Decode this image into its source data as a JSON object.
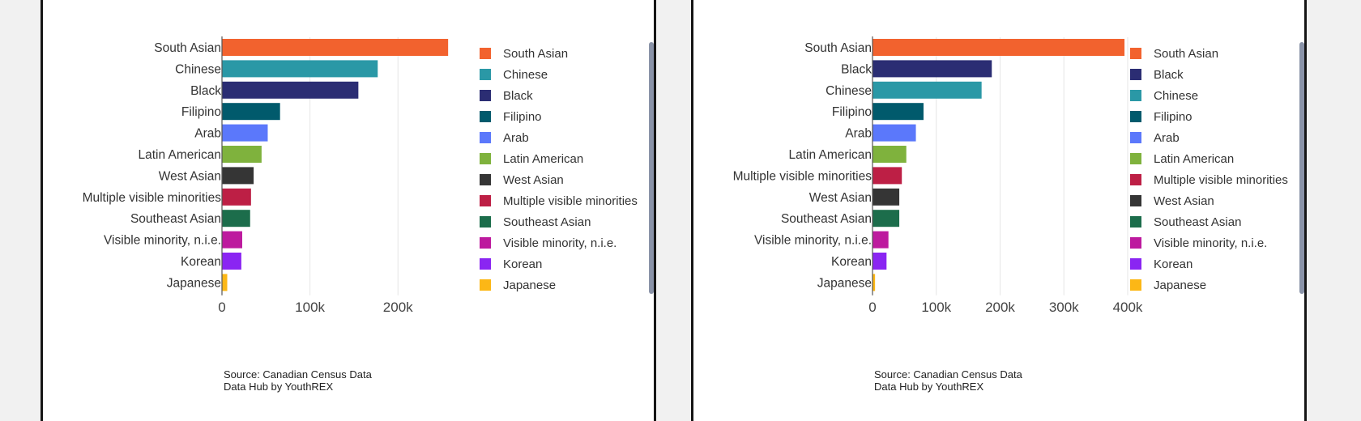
{
  "chart_data": [
    {
      "type": "bar",
      "orientation": "horizontal",
      "categories": [
        "South Asian",
        "Chinese",
        "Black",
        "Filipino",
        "Arab",
        "Latin American",
        "West Asian",
        "Multiple visible minorities",
        "Southeast Asian",
        "Visible minority, n.i.e.",
        "Korean",
        "Japanese"
      ],
      "values": [
        257000,
        177000,
        155000,
        66000,
        52000,
        45000,
        36000,
        33000,
        32000,
        23000,
        22000,
        6000
      ],
      "colors": [
        "#f2622e",
        "#2a98a6",
        "#2b2d73",
        "#015a6c",
        "#5b78fb",
        "#7fb23d",
        "#353535",
        "#bd1f45",
        "#1c6d4b",
        "#bd1a9e",
        "#8a25f2",
        "#fcb716"
      ],
      "xlim": [
        0,
        290000
      ],
      "xticks": [
        "0",
        "100k",
        "200k"
      ],
      "grid": true,
      "legend": "right",
      "source_lines": [
        "Source: Canadian Census Data",
        "Data Hub by YouthREX"
      ]
    },
    {
      "type": "bar",
      "orientation": "horizontal",
      "categories": [
        "South Asian",
        "Black",
        "Chinese",
        "Filipino",
        "Arab",
        "Latin American",
        "Multiple visible minorities",
        "West Asian",
        "Southeast Asian",
        "Visible minority, n.i.e.",
        "Korean",
        "Japanese"
      ],
      "values": [
        395000,
        187000,
        171000,
        80000,
        68000,
        53000,
        46000,
        42000,
        42000,
        25000,
        22000,
        4000
      ],
      "colors": [
        "#f2622e",
        "#2b2d73",
        "#2a98a6",
        "#015a6c",
        "#5b78fb",
        "#7fb23d",
        "#bd1f45",
        "#353535",
        "#1c6d4b",
        "#bd1a9e",
        "#8a25f2",
        "#fcb716"
      ],
      "xlim": [
        0,
        400000
      ],
      "xticks": [
        "0",
        "100k",
        "200k",
        "300k",
        "400k"
      ],
      "grid": true,
      "legend": "right",
      "source_lines": [
        "Source: Canadian Census Data",
        "Data Hub by YouthREX"
      ]
    }
  ]
}
